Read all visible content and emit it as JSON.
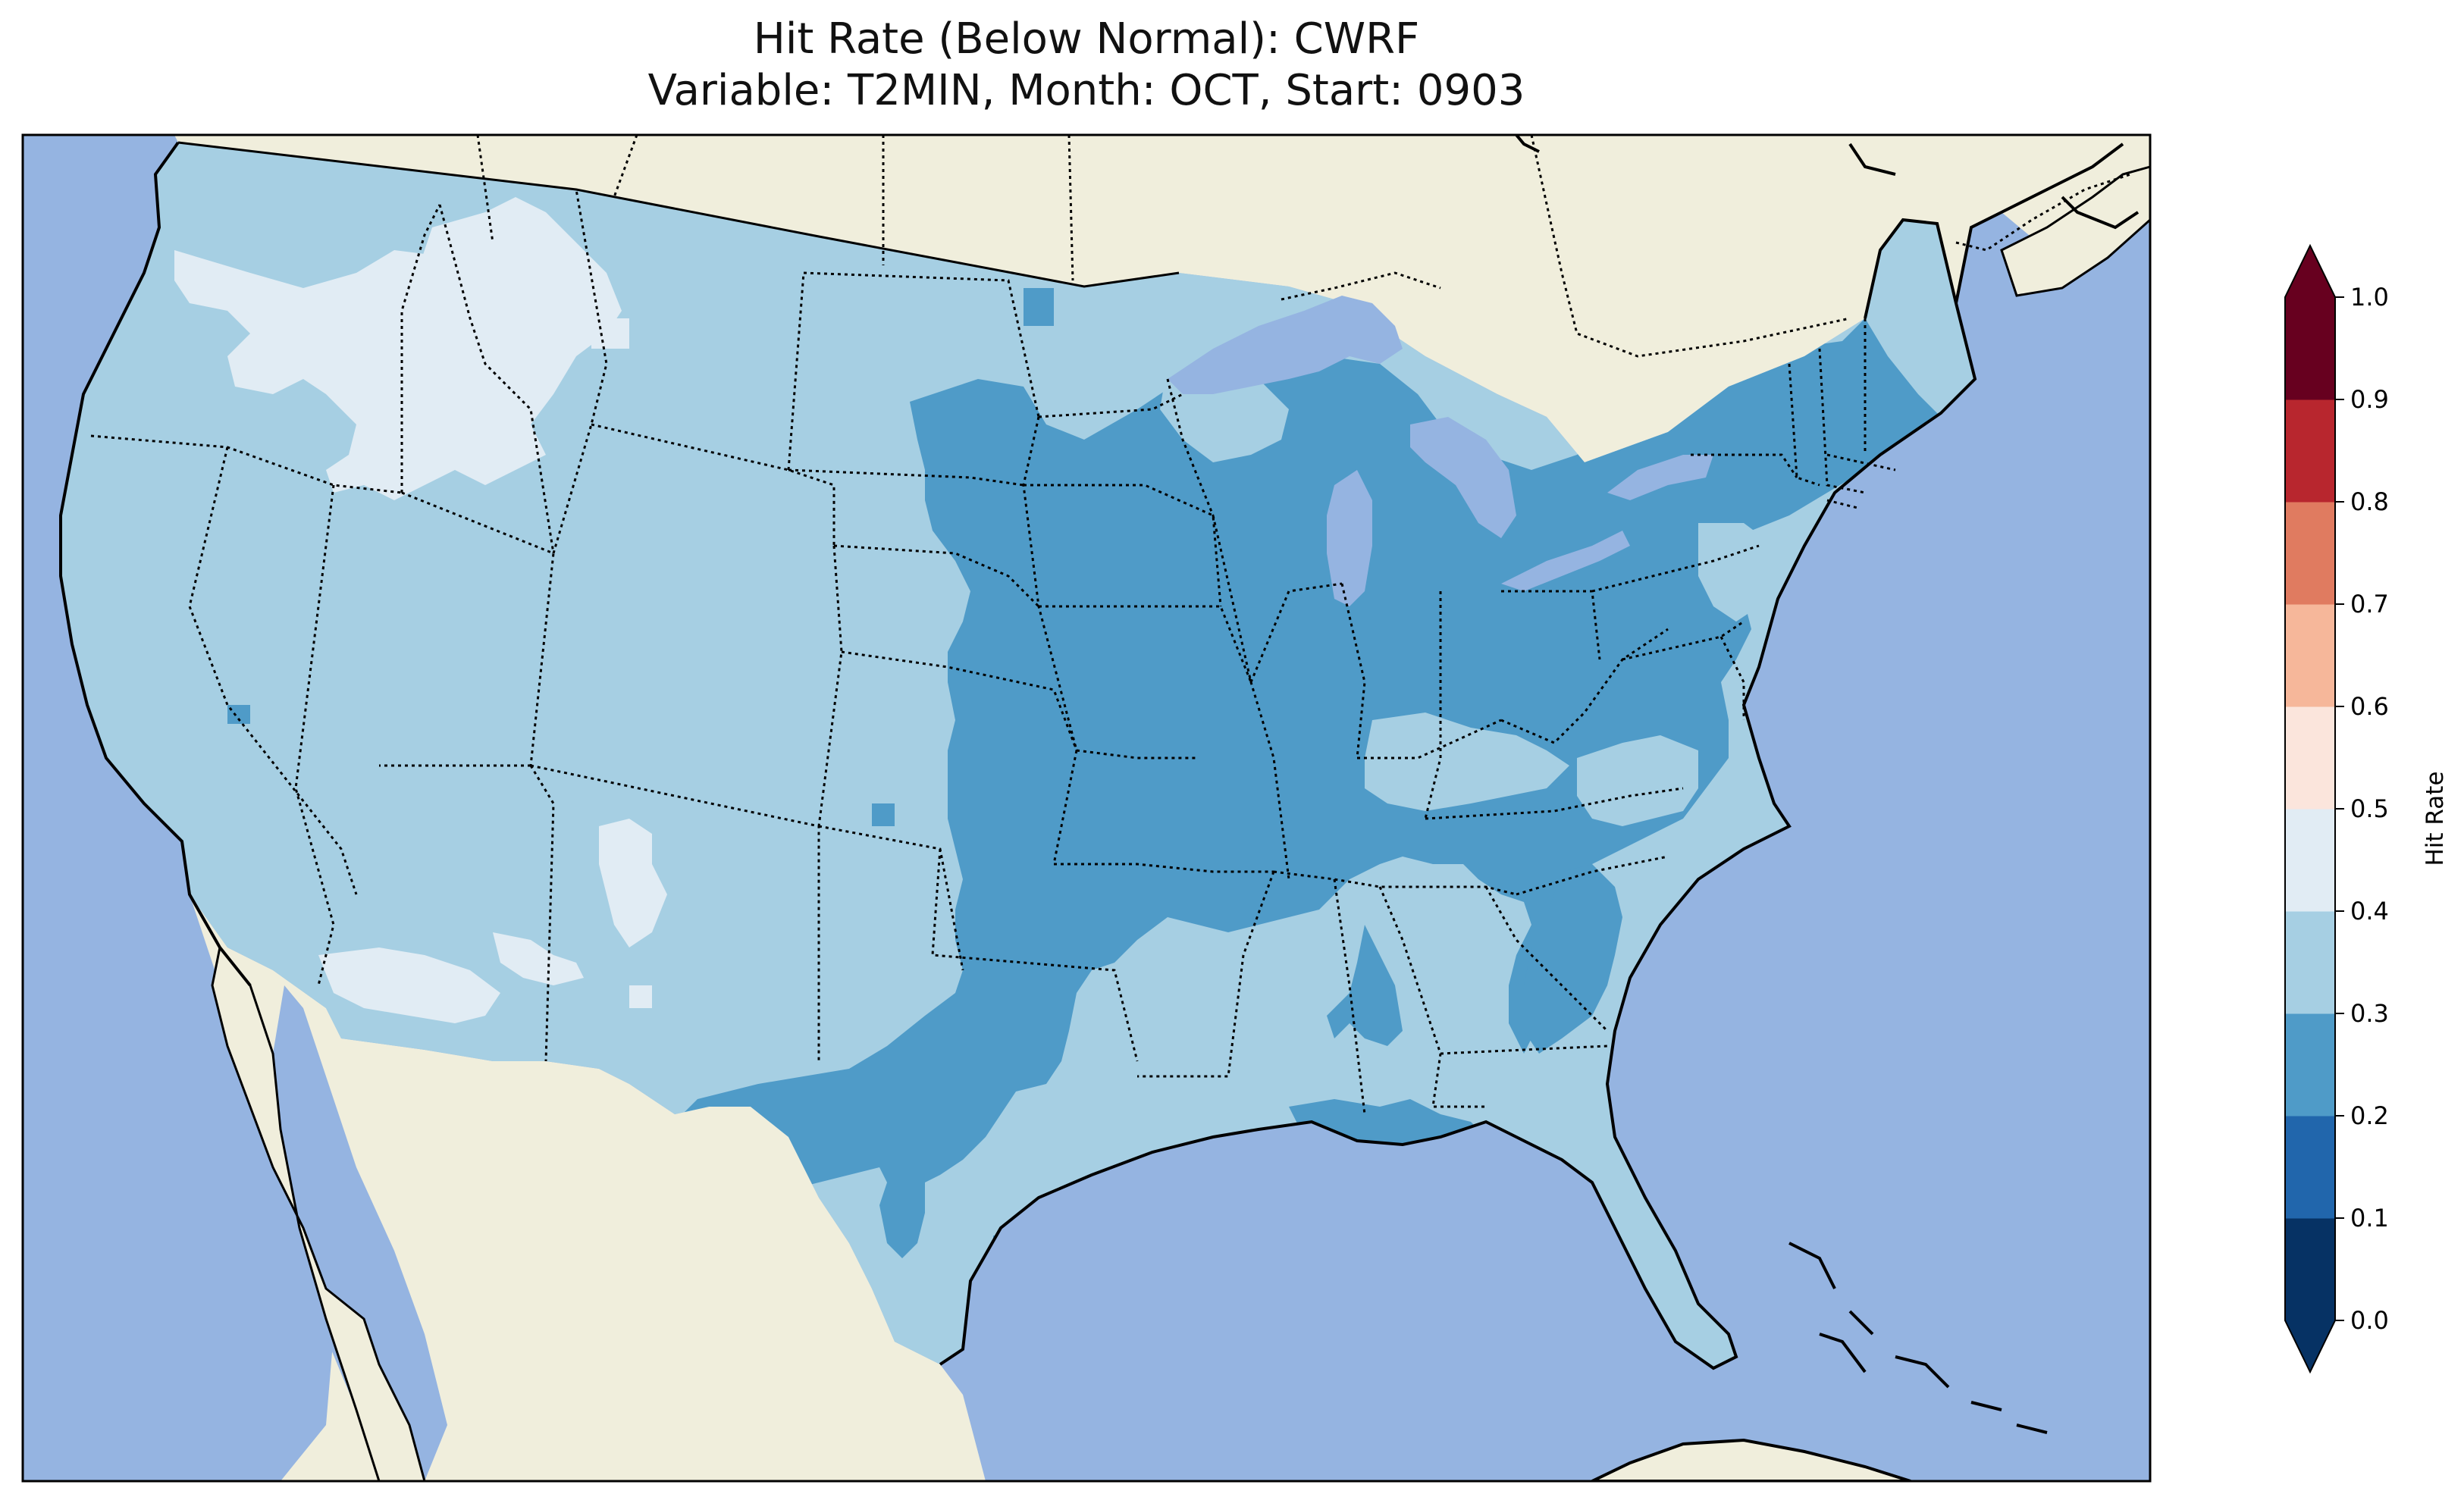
{
  "title": {
    "line1": "Hit Rate (Below Normal): CWRF",
    "line2": "Variable: T2MIN, Month: OCT, Start: 0903"
  },
  "colors": {
    "ocean": "#95b4e1",
    "land": "#f0eedc",
    "lakes": "#95b4e1",
    "bin_0_1": "#063264",
    "bin_1_2": "#2166ac",
    "bin_2_3": "#4f9bc8",
    "bin_3_4": "#a6cfe3",
    "bin_4_5": "#e1ecf4",
    "bin_5_6": "#fbe5dc",
    "bin_6_7": "#f6b79a",
    "bin_7_8": "#e07b60",
    "bin_8_9": "#b8262e",
    "bin_9_10": "#67001f"
  },
  "colorbar": {
    "label": "Hit Rate",
    "ticks": [
      "0.0",
      "0.1",
      "0.2",
      "0.3",
      "0.4",
      "0.5",
      "0.6",
      "0.7",
      "0.8",
      "0.9",
      "1.0"
    ],
    "extend": "both",
    "bins": [
      {
        "range": [
          0.0,
          0.1
        ],
        "color": "#063264"
      },
      {
        "range": [
          0.1,
          0.2
        ],
        "color": "#2166ac"
      },
      {
        "range": [
          0.2,
          0.3
        ],
        "color": "#4f9bc8"
      },
      {
        "range": [
          0.3,
          0.4
        ],
        "color": "#a6cfe3"
      },
      {
        "range": [
          0.4,
          0.5
        ],
        "color": "#e1ecf4"
      },
      {
        "range": [
          0.5,
          0.6
        ],
        "color": "#fbe5dc"
      },
      {
        "range": [
          0.6,
          0.7
        ],
        "color": "#f6b79a"
      },
      {
        "range": [
          0.7,
          0.8
        ],
        "color": "#e07b60"
      },
      {
        "range": [
          0.8,
          0.9
        ],
        "color": "#b8262e"
      },
      {
        "range": [
          0.9,
          1.0
        ],
        "color": "#67001f"
      }
    ]
  },
  "map": {
    "region": "Contiguous United States",
    "dominant_bin": "0.3-0.4",
    "regions_bin_0_2_0_3": "Central Plains, Midwest, Great Lakes, Ohio Valley, Northeast, Texas",
    "regions_bin_0_4_0_5": "Pacific Northwest interior, Idaho, parts of New Mexico and Southern California"
  }
}
